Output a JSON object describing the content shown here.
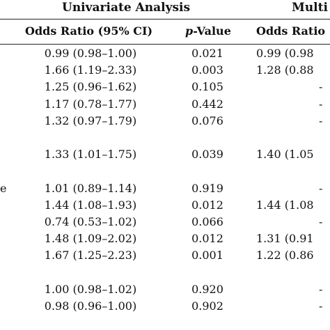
{
  "header": {
    "group_univariate": "Univariate Analysis",
    "group_multi": "Multi",
    "col_or": "Odds Ratio (95% CI)",
    "col_p_italic": "p",
    "col_p_rest": "-Value",
    "col_mor": "Odds Ratio"
  },
  "rows": [
    {
      "label": "",
      "or": "0.99 (0.98–1.00)",
      "p": "0.021",
      "mor": "0.99 (0.98"
    },
    {
      "label": "",
      "or": "1.66 (1.19–2.33)",
      "p": "0.003",
      "mor": "1.28 (0.88"
    },
    {
      "label": "",
      "or": "1.25 (0.96–1.62)",
      "p": "0.105",
      "mor": "-"
    },
    {
      "label": "",
      "or": "1.17 (0.78–1.77)",
      "p": "0.442",
      "mor": "-"
    },
    {
      "label": "",
      "or": "1.32 (0.97–1.79)",
      "p": "0.076",
      "mor": "-"
    },
    {
      "label": "",
      "or": "",
      "p": "",
      "mor": ""
    },
    {
      "label": "",
      "or": "1.33 (1.01–1.75)",
      "p": "0.039",
      "mor": "1.40 (1.05"
    },
    {
      "label": "",
      "or": "",
      "p": "",
      "mor": ""
    },
    {
      "label": "e",
      "or": "1.01 (0.89–1.14)",
      "p": "0.919",
      "mor": "-"
    },
    {
      "label": "",
      "or": "1.44 (1.08–1.93)",
      "p": "0.012",
      "mor": "1.44 (1.08"
    },
    {
      "label": "",
      "or": "0.74 (0.53–1.02)",
      "p": "0.066",
      "mor": "-"
    },
    {
      "label": "",
      "or": "1.48 (1.09–2.02)",
      "p": "0.012",
      "mor": "1.31 (0.91"
    },
    {
      "label": "",
      "or": "1.67 (1.25–2.23)",
      "p": "0.001",
      "mor": "1.22 (0.86"
    },
    {
      "label": "",
      "or": "",
      "p": "",
      "mor": ""
    },
    {
      "label": "",
      "or": "1.00 (0.98–1.02)",
      "p": "0.920",
      "mor": "-"
    },
    {
      "label": "",
      "or": "0.98 (0.96–1.00)",
      "p": "0.902",
      "mor": "-"
    }
  ]
}
